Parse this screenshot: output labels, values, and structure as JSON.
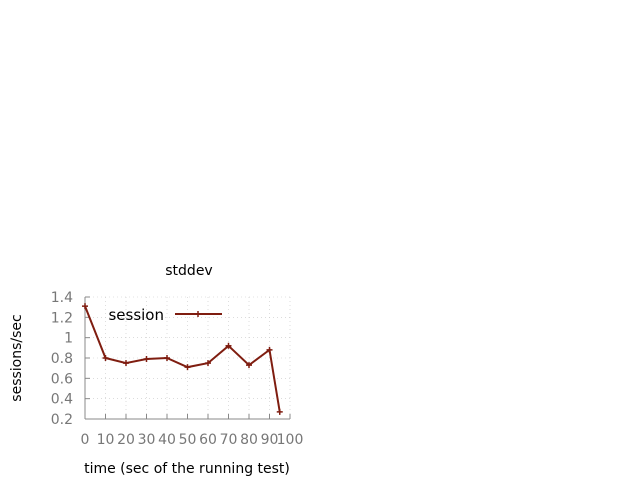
{
  "chart_data": {
    "type": "line",
    "title": "stddev",
    "xlabel": "time (sec of the running test)",
    "ylabel": "sessions/sec",
    "x_ticks": [
      "0",
      "10",
      "20",
      "30",
      "40",
      "50",
      "60",
      "70",
      "80",
      "90",
      "100"
    ],
    "y_ticks": [
      "0.2",
      "0.4",
      "0.6",
      "0.8",
      "1",
      "1.2",
      "1.4"
    ],
    "xlim": [
      0,
      100
    ],
    "ylim": [
      0.2,
      1.4
    ],
    "grid": true,
    "legend_position": "top-left",
    "series": [
      {
        "name": "session",
        "color": "#7f1d10",
        "marker": "plus",
        "x": [
          0,
          10,
          20,
          30,
          40,
          50,
          60,
          70,
          80,
          90,
          95
        ],
        "y": [
          1.31,
          0.8,
          0.75,
          0.79,
          0.8,
          0.71,
          0.75,
          0.92,
          0.73,
          0.88,
          0.27
        ]
      }
    ]
  }
}
